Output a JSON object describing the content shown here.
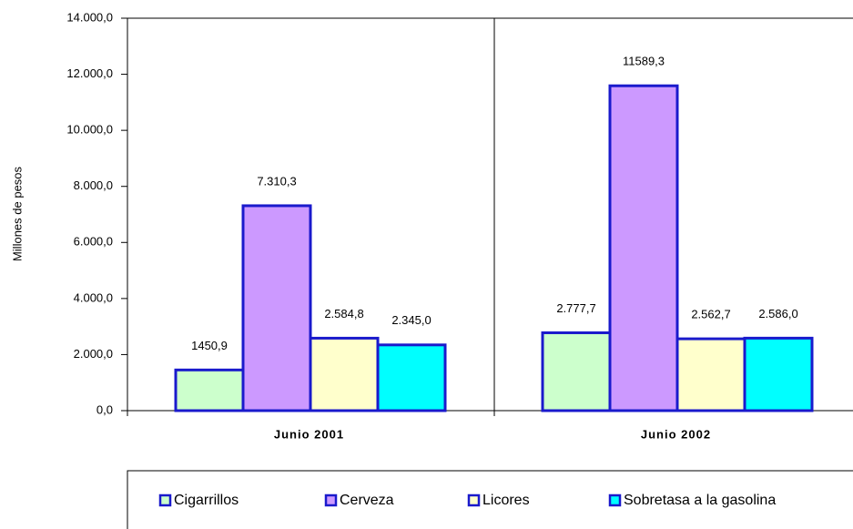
{
  "chart_data": {
    "type": "bar",
    "y_label": "Millones de pesos",
    "categories": [
      "Junio 2001",
      "Junio 2002"
    ],
    "series": [
      {
        "name": "Cigarrillos",
        "color": "#ccffcc",
        "values": [
          1450.9,
          2777.7
        ],
        "value_labels": [
          "1450,9",
          "2.777,7"
        ]
      },
      {
        "name": "Cerveza",
        "color": "#cc99ff",
        "values": [
          7310.3,
          11589.3
        ],
        "value_labels": [
          "7.310,3",
          "11589,3"
        ]
      },
      {
        "name": "Licores",
        "color": "#ffffcc",
        "values": [
          2584.8,
          2562.7
        ],
        "value_labels": [
          "2.584,8",
          "2.562,7"
        ]
      },
      {
        "name": "Sobretasa a la gasolina",
        "color": "#00ffff",
        "values": [
          2345.0,
          2586.0
        ],
        "value_labels": [
          "2.345,0",
          "2.586,0"
        ]
      }
    ],
    "ylim": [
      0,
      14000
    ],
    "yticks": [
      {
        "value": 0,
        "label": "0,0"
      },
      {
        "value": 2000,
        "label": "2.000,0"
      },
      {
        "value": 4000,
        "label": "4.000,0"
      },
      {
        "value": 6000,
        "label": "6.000,0"
      },
      {
        "value": 8000,
        "label": "8.000,0"
      },
      {
        "value": 10000,
        "label": "10.000,0"
      },
      {
        "value": 12000,
        "label": "12.000,0"
      },
      {
        "value": 14000,
        "label": "14.000,0"
      }
    ],
    "bar_outline": "#1a1acc",
    "legend": "bottom"
  }
}
